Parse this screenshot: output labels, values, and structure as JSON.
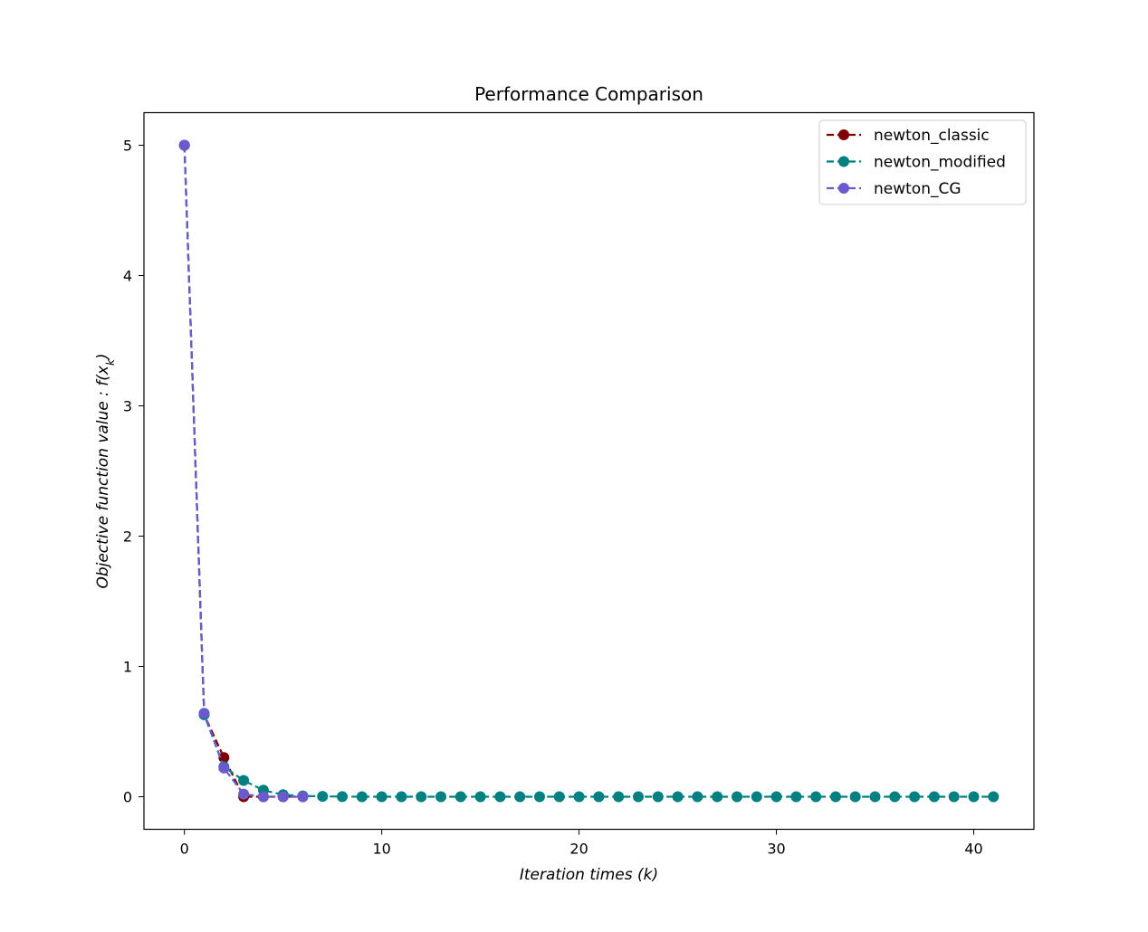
{
  "chart_data": {
    "type": "line",
    "title": "Performance Comparison",
    "xlabel": "Iteration times (k)",
    "ylabel": "Objective function value : f(x_k)",
    "xlim": [
      -2.05,
      43.05
    ],
    "ylim": [
      -0.25,
      5.25
    ],
    "xticks": [
      0,
      10,
      20,
      30,
      40
    ],
    "yticks": [
      0,
      1,
      2,
      3,
      4,
      5
    ],
    "grid": false,
    "legend_position": "top-right",
    "series": [
      {
        "name": "newton_classic",
        "color": "#800000",
        "line_style": "dashed",
        "marker": "circle",
        "x": [
          0,
          1,
          2,
          3,
          4,
          5,
          6
        ],
        "y": [
          5.0,
          0.63,
          0.3,
          0.0,
          0.0,
          0.0,
          0.0
        ]
      },
      {
        "name": "newton_modified",
        "color": "#008080",
        "line_style": "dashed",
        "marker": "circle",
        "x": [
          0,
          1,
          2,
          3,
          4,
          5,
          6,
          7,
          8,
          9,
          10,
          11,
          12,
          13,
          14,
          15,
          16,
          17,
          18,
          19,
          20,
          21,
          22,
          23,
          24,
          25,
          26,
          27,
          28,
          29,
          30,
          31,
          32,
          33,
          34,
          35,
          36,
          37,
          38,
          39,
          40,
          41
        ],
        "y": [
          5.0,
          0.63,
          0.23,
          0.125,
          0.05,
          0.015,
          0.006,
          0.003,
          0.001,
          0.0,
          0.0,
          0.0,
          0.0,
          0.0,
          0.0,
          0.0,
          0.0,
          0.0,
          0.0,
          0.0,
          0.0,
          0.0,
          0.0,
          0.0,
          0.0,
          0.0,
          0.0,
          0.0,
          0.0,
          0.0,
          0.0,
          0.0,
          0.0,
          0.0,
          0.0,
          0.0,
          0.0,
          0.0,
          0.0,
          0.0,
          0.0,
          0.0
        ]
      },
      {
        "name": "newton_CG",
        "color": "#6a5acd",
        "line_style": "dashed",
        "marker": "circle",
        "x": [
          0,
          1,
          2,
          3,
          4,
          5,
          6
        ],
        "y": [
          5.0,
          0.64,
          0.22,
          0.02,
          0.0,
          0.0,
          0.0
        ]
      }
    ]
  }
}
